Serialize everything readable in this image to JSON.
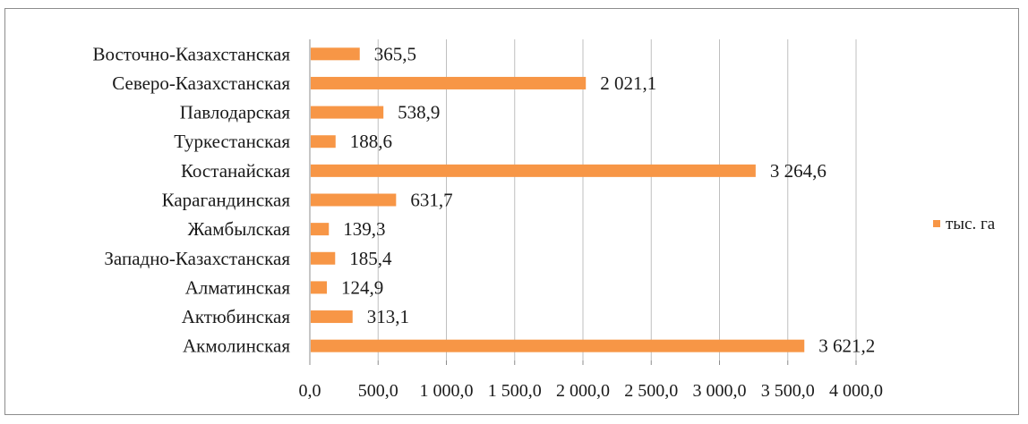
{
  "chart_data": {
    "type": "bar",
    "orientation": "horizontal",
    "categories": [
      "Восточно-Казахстанская",
      "Северо-Казахстанская",
      "Павлодарская",
      "Туркестанская",
      "Костанайская",
      "Карагандинская",
      "Жамбылская",
      "Западно-Казахстанская",
      "Алматинская",
      "Актюбинская",
      "Акмолинская"
    ],
    "series": [
      {
        "name": "тыс. га",
        "values": [
          365.5,
          2021.1,
          538.9,
          188.6,
          3264.6,
          631.7,
          139.3,
          185.4,
          124.9,
          313.1,
          3621.2
        ],
        "data_labels": [
          "365,5",
          "2 021,1",
          "538,9",
          "188,6",
          "3 264,6",
          "631,7",
          "139,3",
          "185,4",
          "124,9",
          "313,1",
          "3 621,2"
        ]
      }
    ],
    "xlim": [
      0,
      4000
    ],
    "x_ticks": [
      0,
      500,
      1000,
      1500,
      2000,
      2500,
      3000,
      3500,
      4000
    ],
    "x_tick_labels": [
      "0,0",
      "500,0",
      "1 000,0",
      "1 500,0",
      "2 000,0",
      "2 500,0",
      "3 000,0",
      "3 500,0",
      "4 000,0"
    ],
    "grid": "vertical",
    "legend": {
      "position": "right",
      "entries": [
        "тыс. га"
      ]
    },
    "bar_color": "#f79646",
    "grid_color": "#bfbfbf"
  }
}
